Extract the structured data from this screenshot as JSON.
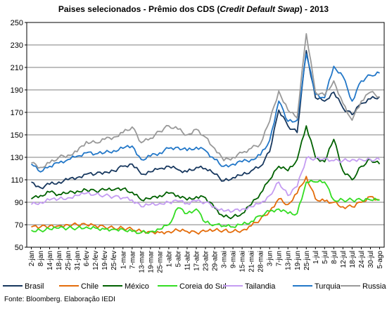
{
  "title": {
    "prefix": "Paises selecionados - Prêmio dos CDS (",
    "italic": "Credit Default Swap",
    "suffix": ") - 2013"
  },
  "source": "Fonte: Bloomberg. Elaboração IEDI",
  "chart_data": {
    "type": "line",
    "title": "Paises selecionados - Prêmio dos CDS (Credit Default Swap) - 2013",
    "ylim": [
      50,
      250
    ],
    "yticks": [
      50,
      70,
      90,
      110,
      130,
      150,
      170,
      190,
      210,
      230,
      250
    ],
    "categories": [
      "2-jan",
      "8-jan",
      "14-jan",
      "18-jan",
      "25-jan",
      "31-jan",
      "6-fev",
      "12-fev",
      "19-fev",
      "25-fev",
      "1-mar",
      "7-mar",
      "13-mar",
      "19-mar",
      "25-mar",
      "1-abr",
      "5-abr",
      "11-abr",
      "17-abr",
      "23-abr",
      "29-abr",
      "3-mai",
      "9-mai",
      "15-mai",
      "21-mai",
      "28-mai",
      "3-jun",
      "7-jun",
      "13-jun",
      "19-jun",
      "25-jun",
      "1-jul",
      "5-jul",
      "8-jul",
      "12-jul",
      "18-jul",
      "24-jul",
      "30-jul",
      "5-ago"
    ],
    "grid": true,
    "legend": "bottom",
    "series": [
      {
        "name": "Brasil",
        "color": "#17375e",
        "values": [
          108,
          103,
          106,
          108,
          110,
          112,
          115,
          115,
          117,
          118,
          122,
          124,
          115,
          117,
          120,
          122,
          119,
          117,
          121,
          120,
          115,
          109,
          112,
          114,
          118,
          122,
          135,
          172,
          158,
          152,
          225,
          183,
          180,
          188,
          174,
          168,
          178,
          182,
          184
        ]
      },
      {
        "name": "Chile",
        "color": "#e46c0a",
        "values": [
          68,
          68,
          69,
          69,
          70,
          70,
          70,
          69,
          68,
          67,
          67,
          66,
          64,
          64,
          63,
          64,
          65,
          64,
          63,
          64,
          65,
          65,
          64,
          65,
          69,
          75,
          82,
          93,
          88,
          98,
          113,
          93,
          91,
          90,
          86,
          86,
          90,
          95,
          92
        ]
      },
      {
        "name": "México",
        "color": "#006100",
        "values": [
          93,
          96,
          99,
          97,
          98,
          100,
          101,
          100,
          101,
          101,
          102,
          99,
          92,
          93,
          96,
          98,
          96,
          92,
          95,
          94,
          85,
          77,
          77,
          80,
          88,
          98,
          110,
          122,
          118,
          128,
          158,
          130,
          126,
          146,
          118,
          110,
          122,
          128,
          124
        ]
      },
      {
        "name": "Coreia do Sul",
        "color": "#33dd22",
        "values": [
          65,
          65,
          66,
          67,
          67,
          67,
          68,
          67,
          66,
          66,
          66,
          64,
          63,
          64,
          66,
          70,
          85,
          80,
          84,
          72,
          70,
          69,
          68,
          70,
          73,
          78,
          82,
          84,
          80,
          80,
          108,
          108,
          108,
          92,
          92,
          92,
          92,
          92,
          92
        ]
      },
      {
        "name": "Tailandia",
        "color": "#c49cf2",
        "values": [
          88,
          90,
          92,
          93,
          94,
          96,
          98,
          97,
          96,
          95,
          94,
          92,
          86,
          88,
          89,
          90,
          91,
          89,
          91,
          90,
          86,
          82,
          82,
          84,
          86,
          89,
          96,
          108,
          96,
          104,
          129,
          129,
          129,
          127,
          127,
          128,
          128,
          128,
          128
        ]
      },
      {
        "name": "Turquia",
        "color": "#2277c8",
        "values": [
          124,
          117,
          122,
          125,
          128,
          131,
          134,
          133,
          134,
          136,
          138,
          140,
          128,
          131,
          134,
          138,
          139,
          136,
          139,
          136,
          128,
          122,
          124,
          126,
          128,
          132,
          145,
          180,
          162,
          163,
          222,
          186,
          183,
          211,
          202,
          180,
          198,
          203,
          205
        ]
      },
      {
        "name": "Russia",
        "color": "#999999",
        "values": [
          125,
          121,
          125,
          130,
          132,
          135,
          144,
          143,
          146,
          148,
          152,
          157,
          143,
          147,
          153,
          158,
          155,
          150,
          155,
          148,
          138,
          127,
          130,
          134,
          138,
          142,
          162,
          189,
          172,
          165,
          240,
          188,
          185,
          198,
          178,
          163,
          180,
          188,
          184
        ]
      }
    ]
  }
}
